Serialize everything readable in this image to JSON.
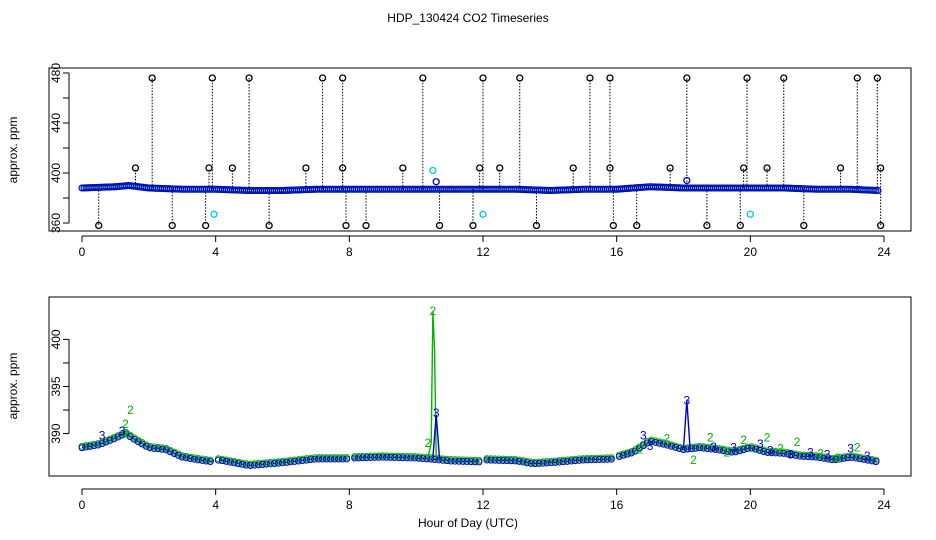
{
  "figure": {
    "title": "HDP_130424  CO2 Timeseries",
    "xlabel": "Hour of Day (UTC)"
  },
  "colors": {
    "raw": "#000000",
    "series2": "#00b400",
    "series3": "#0000cc",
    "flagged": "#00cccc"
  },
  "chart_data": [
    {
      "type": "scatter",
      "panel": "top",
      "ylabel": "approx. ppm",
      "xlim": [
        0,
        24
      ],
      "ylim": [
        360,
        480
      ],
      "xticks": [
        0,
        4,
        8,
        12,
        16,
        20,
        24
      ],
      "yticks": [
        360,
        400,
        440,
        480
      ],
      "baseline": [
        [
          0.0,
          388
        ],
        [
          1.0,
          389
        ],
        [
          1.4,
          390
        ],
        [
          2.0,
          388
        ],
        [
          3.0,
          387
        ],
        [
          4.0,
          387
        ],
        [
          5.0,
          386
        ],
        [
          6.0,
          386
        ],
        [
          7.0,
          387
        ],
        [
          8.0,
          387
        ],
        [
          9.0,
          387
        ],
        [
          10.0,
          387
        ],
        [
          11.0,
          387
        ],
        [
          12.0,
          387
        ],
        [
          13.0,
          387
        ],
        [
          14.0,
          386
        ],
        [
          15.0,
          387
        ],
        [
          16.0,
          387
        ],
        [
          17.0,
          389
        ],
        [
          18.0,
          388
        ],
        [
          19.0,
          388
        ],
        [
          20.0,
          388
        ],
        [
          21.0,
          388
        ],
        [
          22.0,
          387
        ],
        [
          23.0,
          387
        ],
        [
          23.8,
          386
        ]
      ],
      "spikes_high": [
        2.1,
        3.9,
        5.0,
        7.2,
        7.8,
        10.2,
        12.0,
        13.1,
        15.2,
        15.8,
        18.1,
        19.9,
        21.0,
        23.2,
        23.8
      ],
      "spikes_mid": [
        1.6,
        3.8,
        4.5,
        6.7,
        7.8,
        9.6,
        11.9,
        12.5,
        14.7,
        15.8,
        17.6,
        19.8,
        20.5,
        22.7,
        23.9
      ],
      "spikes_low": [
        0.5,
        2.7,
        3.7,
        5.6,
        7.9,
        8.5,
        10.7,
        11.7,
        13.6,
        15.9,
        16.6,
        18.7,
        19.7,
        21.6,
        23.9
      ],
      "spike_values": {
        "high": 476,
        "mid": 404,
        "low": 358
      },
      "flagged_points": [
        [
          3.95,
          367
        ],
        [
          10.5,
          402
        ],
        [
          12.0,
          367
        ],
        [
          20.0,
          367
        ]
      ],
      "series3_points": [
        [
          10.6,
          393
        ],
        [
          18.1,
          394
        ]
      ]
    },
    {
      "type": "scatter",
      "panel": "bottom",
      "ylabel": "approx. ppm",
      "xlim": [
        0,
        24
      ],
      "ylim": [
        385.5,
        404.5
      ],
      "xticks": [
        0,
        4,
        8,
        12,
        16,
        20,
        24
      ],
      "yticks": [
        390,
        395,
        400
      ],
      "gaps": [
        [
          3.95,
          4.05
        ],
        [
          7.95,
          8.05
        ],
        [
          11.95,
          12.05
        ],
        [
          15.95,
          16.05
        ]
      ],
      "baseline": [
        [
          0.0,
          388.5
        ],
        [
          0.5,
          388.8
        ],
        [
          1.0,
          389.5
        ],
        [
          1.3,
          390.0
        ],
        [
          1.6,
          389.3
        ],
        [
          2.0,
          388.5
        ],
        [
          2.5,
          388.3
        ],
        [
          3.0,
          387.5
        ],
        [
          3.5,
          387.2
        ],
        [
          3.9,
          387.0
        ],
        [
          4.1,
          387.2
        ],
        [
          5.0,
          386.6
        ],
        [
          6.0,
          386.9
        ],
        [
          7.0,
          387.3
        ],
        [
          7.9,
          387.3
        ],
        [
          8.1,
          387.4
        ],
        [
          9.0,
          387.5
        ],
        [
          10.0,
          387.4
        ],
        [
          10.4,
          387.3
        ],
        [
          11.0,
          387.1
        ],
        [
          11.9,
          387.0
        ],
        [
          12.1,
          387.2
        ],
        [
          13.0,
          387.1
        ],
        [
          13.5,
          386.8
        ],
        [
          14.0,
          386.9
        ],
        [
          15.0,
          387.2
        ],
        [
          15.9,
          387.3
        ],
        [
          16.1,
          387.6
        ],
        [
          16.5,
          388.0
        ],
        [
          17.0,
          389.2
        ],
        [
          17.5,
          388.8
        ],
        [
          18.0,
          388.3
        ],
        [
          18.5,
          388.5
        ],
        [
          19.0,
          388.3
        ],
        [
          19.5,
          388.0
        ],
        [
          20.0,
          388.5
        ],
        [
          20.5,
          388.0
        ],
        [
          21.0,
          387.9
        ],
        [
          21.5,
          387.6
        ],
        [
          22.0,
          387.5
        ],
        [
          22.5,
          387.2
        ],
        [
          23.0,
          387.5
        ],
        [
          23.5,
          387.2
        ],
        [
          23.8,
          387.0
        ]
      ],
      "spike_series2": [
        [
          10.35,
          387.4
        ],
        [
          10.45,
          389.0
        ],
        [
          10.5,
          403.0
        ],
        [
          10.55,
          399.0
        ],
        [
          10.6,
          387.5
        ]
      ],
      "spike_series3": [
        [
          10.5,
          387.4
        ],
        [
          10.6,
          392.0
        ],
        [
          10.7,
          387.3
        ]
      ],
      "spike2_series3": [
        [
          18.0,
          388.4
        ],
        [
          18.1,
          393.5
        ],
        [
          18.2,
          388.3
        ]
      ],
      "labels_series2": [
        [
          1.3,
          391
        ],
        [
          1.45,
          392.5
        ],
        [
          1.3,
          390
        ],
        [
          10.5,
          403
        ],
        [
          10.35,
          389
        ],
        [
          16.7,
          388.3
        ],
        [
          17.5,
          389.5
        ],
        [
          18.3,
          387.2
        ],
        [
          18.8,
          389.6
        ],
        [
          19.3,
          388.0
        ],
        [
          19.8,
          389.3
        ],
        [
          20.5,
          389.6
        ],
        [
          20.9,
          388.4
        ],
        [
          21.4,
          389.1
        ],
        [
          22.1,
          387.9
        ],
        [
          22.6,
          387.4
        ],
        [
          23.2,
          388.5
        ]
      ],
      "labels_series3": [
        [
          1.2,
          390.3
        ],
        [
          0.6,
          389.8
        ],
        [
          10.6,
          392.2
        ],
        [
          16.8,
          389.8
        ],
        [
          17.0,
          388.7
        ],
        [
          18.1,
          393.5
        ],
        [
          18.9,
          388.6
        ],
        [
          19.5,
          388.5
        ],
        [
          20.3,
          388.9
        ],
        [
          20.6,
          388.2
        ],
        [
          21.2,
          387.8
        ],
        [
          21.8,
          388.0
        ],
        [
          22.3,
          387.8
        ],
        [
          23.0,
          388.4
        ],
        [
          23.5,
          387.6
        ]
      ]
    }
  ]
}
